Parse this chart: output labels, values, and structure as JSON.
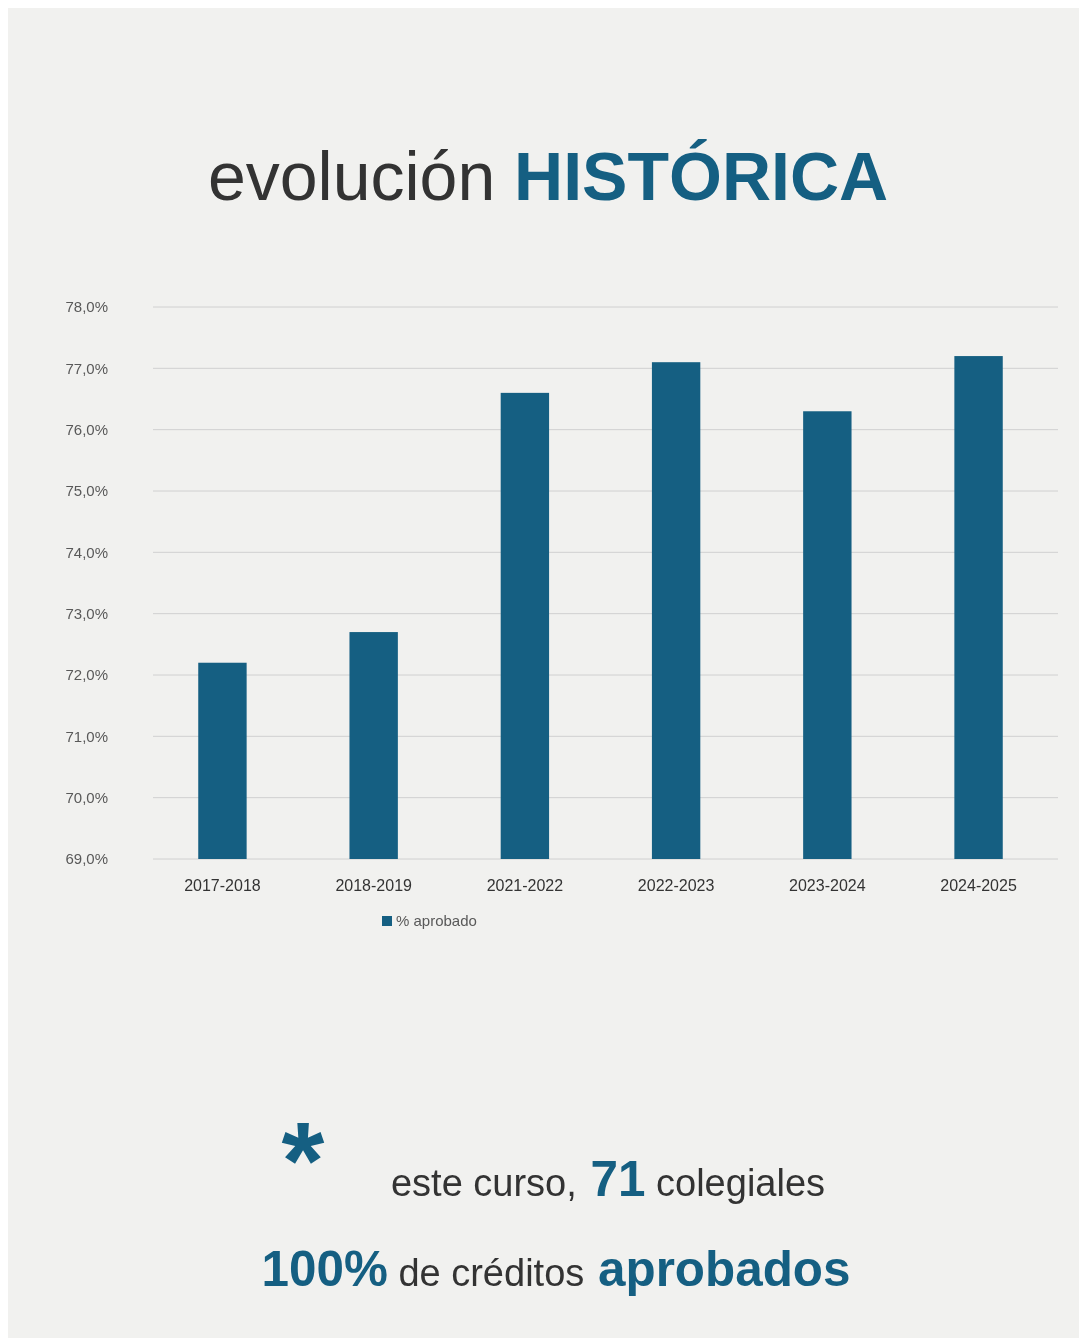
{
  "chart_data": {
    "type": "bar",
    "title": "evolución HISTÓRICA",
    "categories": [
      "2017-2018",
      "2018-2019",
      "2021-2022",
      "2022-2023",
      "2023-2024",
      "2024-2025"
    ],
    "series": [
      {
        "name": "% aprobado",
        "color": "#155f82",
        "values": [
          72.2,
          72.7,
          76.6,
          77.1,
          76.3,
          77.2
        ]
      }
    ],
    "ylim": [
      69,
      78
    ],
    "yticks": [
      {
        "value": 69,
        "label": "69,0%"
      },
      {
        "value": 70,
        "label": "70,0%"
      },
      {
        "value": 71,
        "label": "71,0%"
      },
      {
        "value": 72,
        "label": "72,0%"
      },
      {
        "value": 73,
        "label": "73,0%"
      },
      {
        "value": 74,
        "label": "74,0%"
      },
      {
        "value": 75,
        "label": "75,0%"
      },
      {
        "value": 76,
        "label": "76,0%"
      },
      {
        "value": 77,
        "label": "77,0%"
      },
      {
        "value": 78,
        "label": "78,0%"
      }
    ],
    "grid": "y",
    "legend": "bottom",
    "annotations": [
      "*",
      "este curso, 71 colegiales",
      "100% de créditos aprobados"
    ]
  }
}
